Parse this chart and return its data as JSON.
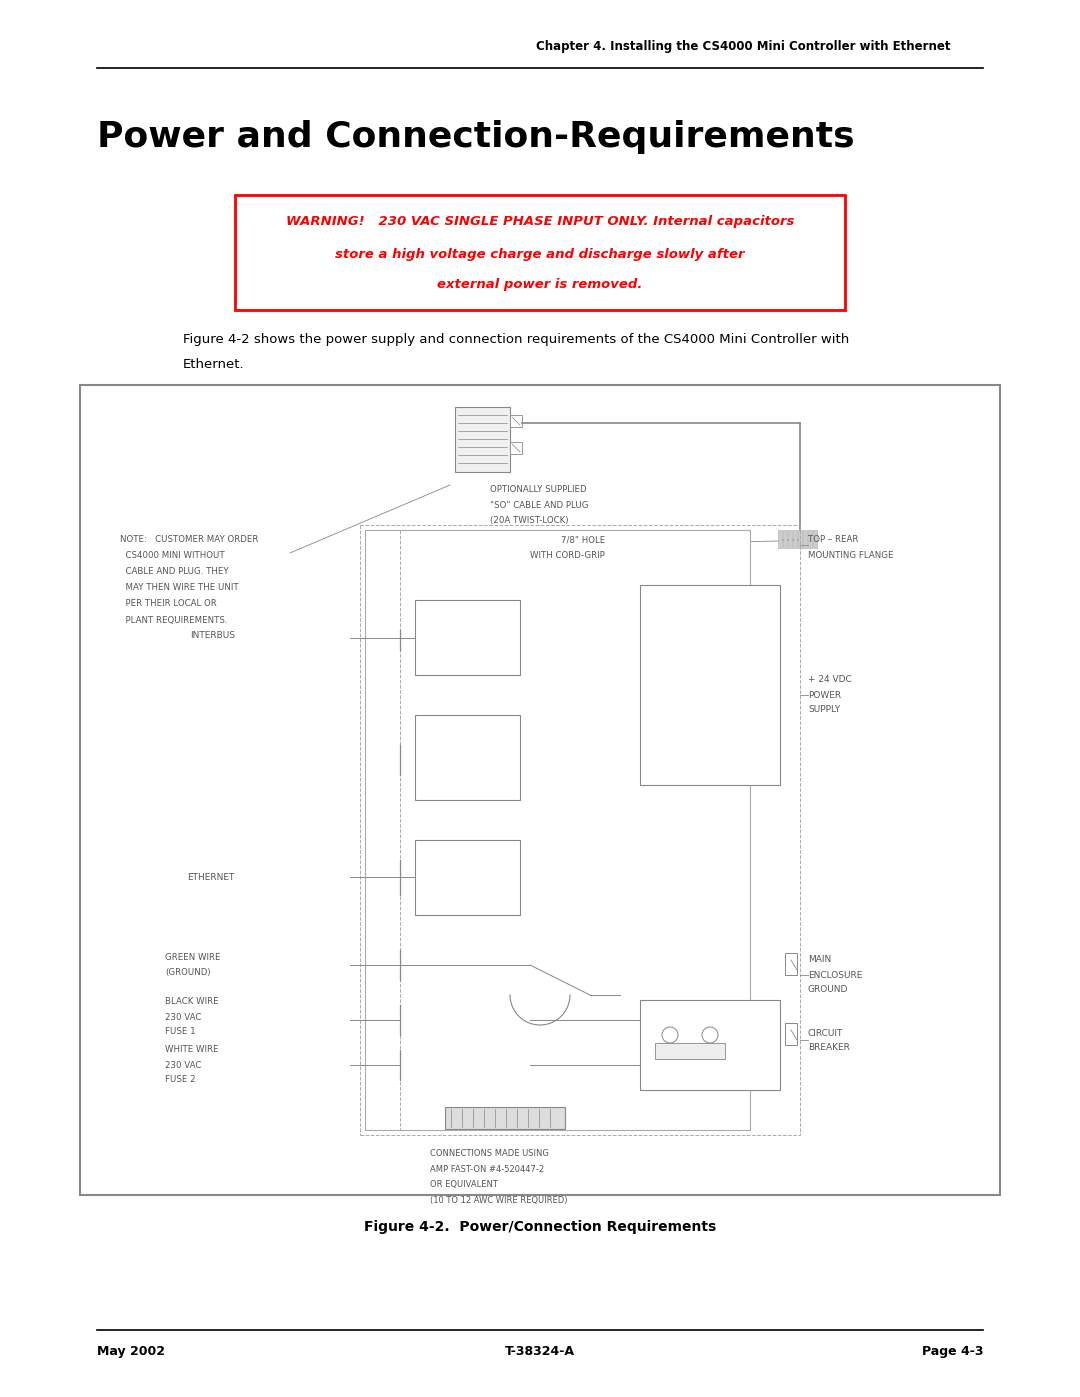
{
  "page_width": 10.8,
  "page_height": 13.97,
  "bg_color": "#ffffff",
  "header_text": "Chapter 4. Installing the CS4000 Mini Controller with Ethernet",
  "title_text": "Power and Connection-Requirements",
  "warning_line1": "WARNING!   230 VAC SINGLE PHASE INPUT ONLY. Internal capacitors",
  "warning_line2": "store a high voltage charge and discharge slowly after",
  "warning_line3": "external power is removed.",
  "body_line1": "Figure 4-2 shows the power supply and connection requirements of the CS4000 Mini Controller with",
  "body_line2": "Ethernet.",
  "figure_caption": "Figure 4-2.  Power/Connection Requirements",
  "footer_left": "May 2002",
  "footer_center": "T-38324-A",
  "footer_right": "Page 4-3"
}
